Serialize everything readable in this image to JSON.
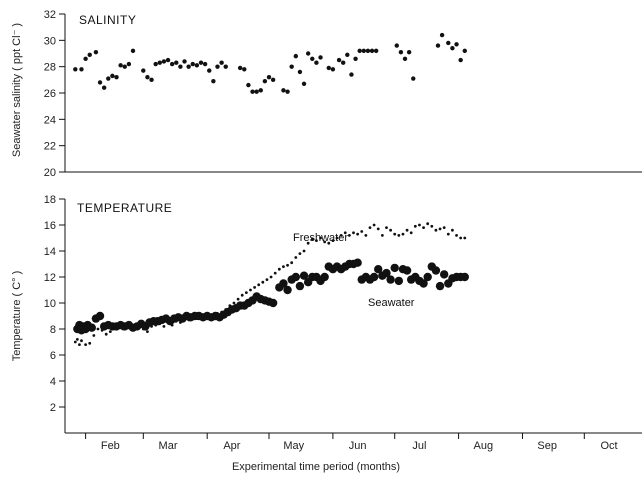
{
  "chart_data": [
    {
      "type": "scatter",
      "title": "SALINITY",
      "ylabel": "Seawater salinity ( ppt Cl⁻ )",
      "xlabel": "",
      "ylim": [
        20,
        32
      ],
      "y_ticks": [
        "20",
        "22",
        "24",
        "26",
        "28",
        "30",
        "32"
      ],
      "x_unit": "days from 1 Feb",
      "series": [
        {
          "points": [
            [
              -5,
              27.8
            ],
            [
              -2,
              27.8
            ],
            [
              0,
              28.6
            ],
            [
              2,
              28.9
            ],
            [
              5,
              29.1
            ],
            [
              7,
              26.8
            ],
            [
              9,
              26.4
            ],
            [
              11,
              27.1
            ],
            [
              13,
              27.3
            ],
            [
              15,
              27.2
            ],
            [
              17,
              28.1
            ],
            [
              19,
              28.0
            ],
            [
              21,
              28.2
            ],
            [
              23,
              29.2
            ],
            [
              28,
              27.7
            ],
            [
              30,
              27.2
            ],
            [
              32,
              27.0
            ],
            [
              34,
              28.2
            ],
            [
              36,
              28.3
            ],
            [
              38,
              28.4
            ],
            [
              40,
              28.5
            ],
            [
              42,
              28.2
            ],
            [
              44,
              28.3
            ],
            [
              46,
              28.0
            ],
            [
              48,
              28.4
            ],
            [
              50,
              28.0
            ],
            [
              52,
              28.2
            ],
            [
              54,
              28.1
            ],
            [
              56,
              28.3
            ],
            [
              58,
              28.2
            ],
            [
              60,
              27.7
            ],
            [
              62,
              26.9
            ],
            [
              64,
              28.0
            ],
            [
              66,
              28.3
            ],
            [
              68,
              28.0
            ],
            [
              75,
              27.9
            ],
            [
              77,
              27.8
            ],
            [
              79,
              26.6
            ],
            [
              81,
              26.1
            ],
            [
              83,
              26.1
            ],
            [
              85,
              26.2
            ],
            [
              87,
              26.9
            ],
            [
              89,
              27.2
            ],
            [
              91,
              27.0
            ],
            [
              96,
              26.2
            ],
            [
              98,
              26.1
            ],
            [
              100,
              28.0
            ],
            [
              102,
              28.8
            ],
            [
              104,
              27.6
            ],
            [
              106,
              26.7
            ],
            [
              108,
              29.0
            ],
            [
              110,
              28.6
            ],
            [
              112,
              28.3
            ],
            [
              114,
              28.7
            ],
            [
              118,
              27.9
            ],
            [
              120,
              27.8
            ],
            [
              123,
              28.5
            ],
            [
              125,
              28.3
            ],
            [
              127,
              28.9
            ],
            [
              129,
              27.4
            ],
            [
              131,
              28.6
            ],
            [
              133,
              29.2
            ],
            [
              135,
              29.2
            ],
            [
              137,
              29.2
            ],
            [
              139,
              29.2
            ],
            [
              141,
              29.2
            ],
            [
              151,
              29.6
            ],
            [
              153,
              29.1
            ],
            [
              155,
              28.6
            ],
            [
              157,
              29.1
            ],
            [
              159,
              27.1
            ],
            [
              171,
              29.6
            ],
            [
              173,
              30.4
            ],
            [
              176,
              29.8
            ],
            [
              178,
              29.4
            ],
            [
              180,
              29.7
            ],
            [
              182,
              28.5
            ],
            [
              184,
              29.2
            ]
          ]
        }
      ]
    },
    {
      "type": "scatter",
      "title": "TEMPERATURE",
      "ylabel": "Temperature ( C° )",
      "xlabel": "Experimental time period (months)",
      "ylim": [
        0,
        18
      ],
      "y_ticks": [
        "2",
        "4",
        "6",
        "8",
        "10",
        "12",
        "14",
        "16",
        "18"
      ],
      "x_unit": "days from 1 Feb",
      "x_months": [
        "Feb",
        "Mar",
        "Apr",
        "May",
        "Jun",
        "Jul",
        "Aug",
        "Sep",
        "Oct"
      ],
      "series": [
        {
          "name": "Freshwater",
          "points": [
            [
              -5,
              7.0
            ],
            [
              -4,
              7.2
            ],
            [
              -3,
              6.8
            ],
            [
              -2,
              7.1
            ],
            [
              0,
              6.8
            ],
            [
              2,
              6.9
            ],
            [
              4,
              7.5
            ],
            [
              6,
              8.0
            ],
            [
              8,
              7.9
            ],
            [
              10,
              7.6
            ],
            [
              12,
              7.8
            ],
            [
              14,
              8.0
            ],
            [
              16,
              8.2
            ],
            [
              18,
              8.0
            ],
            [
              20,
              8.2
            ],
            [
              22,
              8.1
            ],
            [
              24,
              8.3
            ],
            [
              26,
              8.2
            ],
            [
              28,
              8.0
            ],
            [
              30,
              7.8
            ],
            [
              32,
              8.2
            ],
            [
              34,
              8.3
            ],
            [
              36,
              8.4
            ],
            [
              38,
              8.2
            ],
            [
              40,
              8.5
            ],
            [
              42,
              8.3
            ],
            [
              44,
              8.6
            ],
            [
              46,
              8.5
            ],
            [
              48,
              8.8
            ],
            [
              50,
              8.7
            ],
            [
              52,
              8.9
            ],
            [
              54,
              8.8
            ],
            [
              56,
              9.0
            ],
            [
              58,
              8.9
            ],
            [
              60,
              9.1
            ],
            [
              62,
              9.0
            ],
            [
              64,
              9.2
            ],
            [
              66,
              9.3
            ],
            [
              68,
              9.5
            ],
            [
              70,
              9.8
            ],
            [
              72,
              10.0
            ],
            [
              74,
              10.3
            ],
            [
              76,
              10.6
            ],
            [
              78,
              10.8
            ],
            [
              80,
              11.0
            ],
            [
              82,
              11.2
            ],
            [
              84,
              11.4
            ],
            [
              86,
              11.6
            ],
            [
              88,
              11.8
            ],
            [
              90,
              12.0
            ],
            [
              92,
              12.3
            ],
            [
              94,
              12.6
            ],
            [
              96,
              12.8
            ],
            [
              98,
              12.9
            ],
            [
              100,
              13.1
            ],
            [
              102,
              13.5
            ],
            [
              104,
              13.8
            ],
            [
              106,
              14.0
            ],
            [
              108,
              14.6
            ],
            [
              110,
              14.9
            ],
            [
              112,
              14.8
            ],
            [
              114,
              15.0
            ],
            [
              116,
              14.7
            ],
            [
              118,
              14.6
            ],
            [
              120,
              14.8
            ],
            [
              122,
              15.0
            ],
            [
              124,
              15.2
            ],
            [
              126,
              15.4
            ],
            [
              128,
              15.2
            ],
            [
              130,
              15.4
            ],
            [
              132,
              15.3
            ],
            [
              134,
              15.5
            ],
            [
              136,
              15.2
            ],
            [
              138,
              15.8
            ],
            [
              140,
              16.0
            ],
            [
              142,
              15.7
            ],
            [
              144,
              15.2
            ],
            [
              146,
              15.8
            ],
            [
              148,
              15.6
            ],
            [
              150,
              15.3
            ],
            [
              152,
              15.2
            ],
            [
              154,
              15.3
            ],
            [
              156,
              15.6
            ],
            [
              158,
              15.4
            ],
            [
              160,
              15.9
            ],
            [
              162,
              16.0
            ],
            [
              164,
              15.8
            ],
            [
              166,
              16.1
            ],
            [
              168,
              15.9
            ],
            [
              170,
              15.6
            ],
            [
              172,
              15.7
            ],
            [
              174,
              15.8
            ],
            [
              176,
              15.3
            ],
            [
              178,
              15.6
            ],
            [
              180,
              15.2
            ],
            [
              182,
              15.0
            ],
            [
              184,
              15.0
            ]
          ]
        },
        {
          "name": "Seawater",
          "points": [
            [
              -4,
              8.0
            ],
            [
              -3,
              8.3
            ],
            [
              -2,
              7.9
            ],
            [
              -1,
              8.2
            ],
            [
              0,
              8.0
            ],
            [
              1,
              8.3
            ],
            [
              3,
              8.1
            ],
            [
              5,
              8.8
            ],
            [
              7,
              9.0
            ],
            [
              9,
              8.2
            ],
            [
              11,
              8.3
            ],
            [
              13,
              8.2
            ],
            [
              15,
              8.2
            ],
            [
              17,
              8.3
            ],
            [
              19,
              8.2
            ],
            [
              21,
              8.3
            ],
            [
              23,
              8.1
            ],
            [
              25,
              8.2
            ],
            [
              27,
              8.4
            ],
            [
              29,
              8.2
            ],
            [
              31,
              8.5
            ],
            [
              33,
              8.6
            ],
            [
              35,
              8.6
            ],
            [
              37,
              8.7
            ],
            [
              39,
              8.8
            ],
            [
              41,
              8.6
            ],
            [
              43,
              8.8
            ],
            [
              45,
              8.9
            ],
            [
              47,
              8.8
            ],
            [
              49,
              9.0
            ],
            [
              51,
              8.9
            ],
            [
              53,
              9.0
            ],
            [
              55,
              9.0
            ],
            [
              57,
              8.9
            ],
            [
              59,
              9.0
            ],
            [
              61,
              8.9
            ],
            [
              63,
              9.0
            ],
            [
              65,
              8.9
            ],
            [
              67,
              9.1
            ],
            [
              69,
              9.3
            ],
            [
              71,
              9.5
            ],
            [
              73,
              9.6
            ],
            [
              75,
              9.8
            ],
            [
              77,
              9.8
            ],
            [
              79,
              10.0
            ],
            [
              81,
              10.2
            ],
            [
              83,
              10.5
            ],
            [
              85,
              10.3
            ],
            [
              87,
              10.2
            ],
            [
              89,
              10.1
            ],
            [
              91,
              10.0
            ],
            [
              94,
              11.2
            ],
            [
              96,
              11.5
            ],
            [
              98,
              11.0
            ],
            [
              100,
              11.8
            ],
            [
              102,
              12.0
            ],
            [
              104,
              11.3
            ],
            [
              106,
              12.1
            ],
            [
              108,
              11.6
            ],
            [
              110,
              12.0
            ],
            [
              112,
              12.0
            ],
            [
              114,
              11.7
            ],
            [
              116,
              12.0
            ],
            [
              118,
              12.8
            ],
            [
              120,
              12.6
            ],
            [
              122,
              12.8
            ],
            [
              124,
              12.6
            ],
            [
              126,
              12.8
            ],
            [
              128,
              13.0
            ],
            [
              130,
              13.0
            ],
            [
              132,
              13.1
            ],
            [
              134,
              11.8
            ],
            [
              136,
              12.0
            ],
            [
              138,
              11.8
            ],
            [
              140,
              12.0
            ],
            [
              142,
              12.6
            ],
            [
              144,
              12.1
            ],
            [
              146,
              12.3
            ],
            [
              148,
              11.8
            ],
            [
              150,
              12.7
            ],
            [
              152,
              11.7
            ],
            [
              154,
              12.6
            ],
            [
              156,
              12.5
            ],
            [
              158,
              11.8
            ],
            [
              160,
              12.0
            ],
            [
              162,
              11.7
            ],
            [
              164,
              11.5
            ],
            [
              166,
              12.0
            ],
            [
              168,
              12.8
            ],
            [
              170,
              12.5
            ],
            [
              172,
              11.3
            ],
            [
              174,
              12.2
            ],
            [
              176,
              11.5
            ],
            [
              178,
              11.9
            ],
            [
              180,
              12.0
            ],
            [
              182,
              12.0
            ],
            [
              184,
              12.0
            ]
          ]
        }
      ]
    }
  ]
}
